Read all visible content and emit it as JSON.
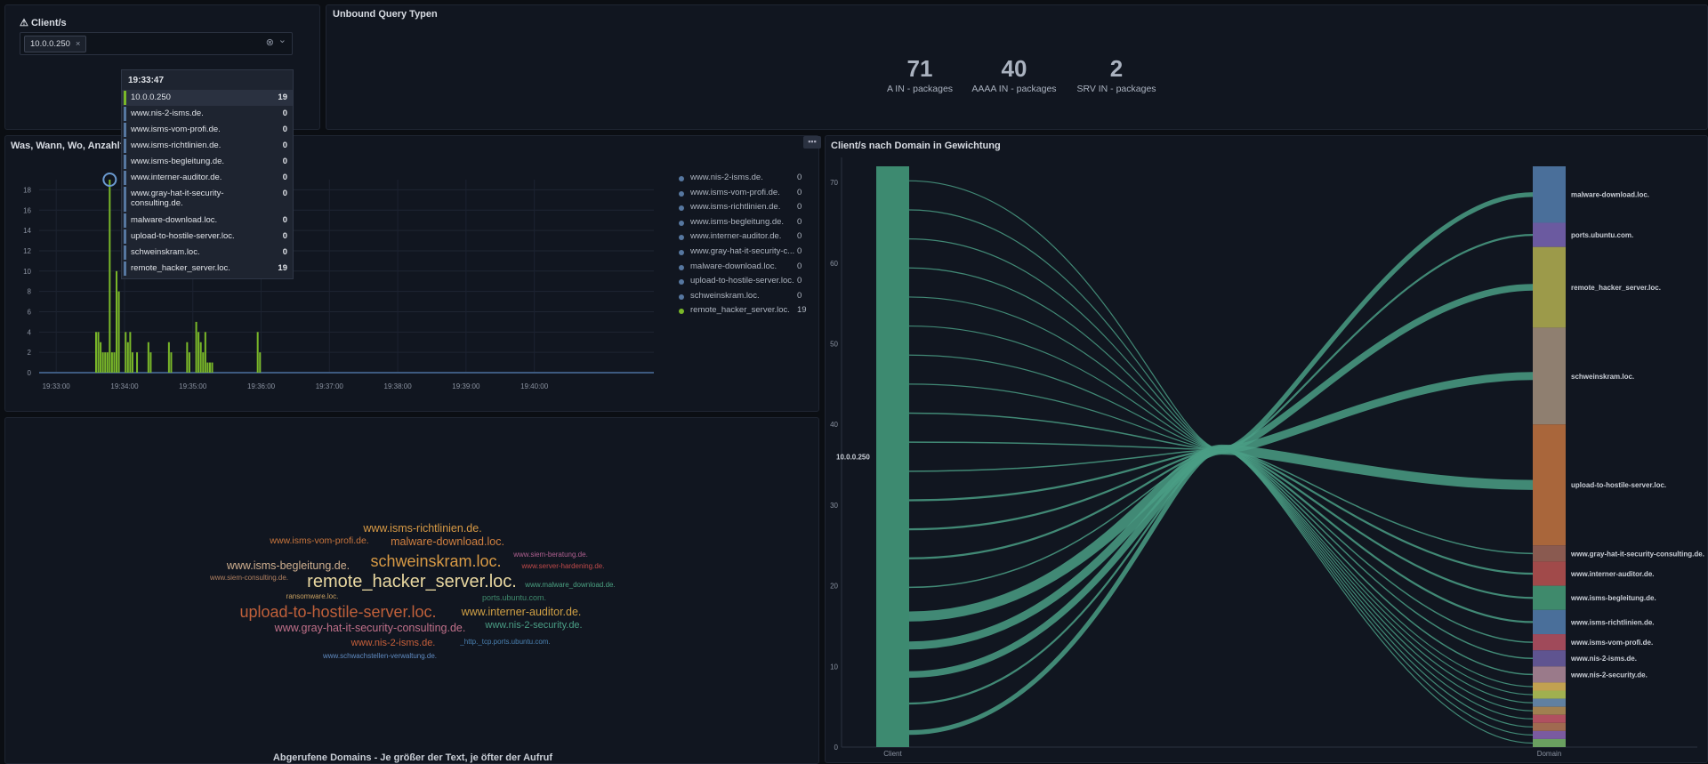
{
  "client_panel": {
    "title": "Client/s",
    "chip": "10.0.0.250",
    "chip_close": "×",
    "clear_icon": "⊗",
    "chevron": "⌄"
  },
  "query_panel": {
    "title": "Unbound Query Typen",
    "stats": [
      {
        "value": "71",
        "label": "A IN - packages"
      },
      {
        "value": "40",
        "label": "AAAA IN - packages"
      },
      {
        "value": "2",
        "label": "SRV IN - packages"
      }
    ]
  },
  "timeline_panel": {
    "title": "Was, Wann, Wo, Anzahl?",
    "tooltip": {
      "time": "19:33:47",
      "rows": [
        {
          "name": "10.0.0.250",
          "count": "19"
        },
        {
          "name": "www.nis-2-isms.de.",
          "count": "0"
        },
        {
          "name": "www.isms-vom-profi.de.",
          "count": "0"
        },
        {
          "name": "www.isms-richtlinien.de.",
          "count": "0"
        },
        {
          "name": "www.isms-begleitung.de.",
          "count": "0"
        },
        {
          "name": "www.interner-auditor.de.",
          "count": "0"
        },
        {
          "name": "www.gray-hat-it-security-",
          "name2": "consulting.de.",
          "count": "0"
        },
        {
          "name": "malware-download.loc.",
          "count": "0"
        },
        {
          "name": "upload-to-hostile-server.loc.",
          "count": "0"
        },
        {
          "name": "schweinskram.loc.",
          "count": "0"
        },
        {
          "name": "remote_hacker_server.loc.",
          "count": "19"
        }
      ]
    },
    "legend": [
      {
        "name": "www.nis-2-isms.de.",
        "count": "0"
      },
      {
        "name": "www.isms-vom-profi.de.",
        "count": "0"
      },
      {
        "name": "www.isms-richtlinien.de.",
        "count": "0"
      },
      {
        "name": "www.isms-begleitung.de.",
        "count": "0"
      },
      {
        "name": "www.interner-auditor.de.",
        "count": "0"
      },
      {
        "name": "www.gray-hat-it-security-c...",
        "count": "0"
      },
      {
        "name": "malware-download.loc.",
        "count": "0"
      },
      {
        "name": "upload-to-hostile-server.loc.",
        "count": "0"
      },
      {
        "name": "schweinskram.loc.",
        "count": "0"
      },
      {
        "name": "remote_hacker_server.loc.",
        "count": "19"
      }
    ]
  },
  "chart_data": [
    {
      "type": "bar",
      "title": "Was, Wann, Wo, Anzahl?",
      "ylim": [
        0,
        19
      ],
      "y_ticks": [
        "0",
        "2",
        "4",
        "6",
        "8",
        "10",
        "12",
        "14",
        "16",
        "18"
      ],
      "x_ticks": [
        "19:33:00",
        "19:34:00",
        "19:35:00",
        "19:36:00",
        "19:37:00",
        "19:38:00",
        "19:39:00",
        "19:40:00"
      ],
      "bar_color": "#7ab829",
      "series": [
        {
          "x": "19:33:35",
          "values": [
            4
          ]
        },
        {
          "x": "19:33:37",
          "values": [
            4
          ]
        },
        {
          "x": "19:33:39",
          "values": [
            3
          ]
        },
        {
          "x": "19:33:41",
          "values": [
            2
          ]
        },
        {
          "x": "19:33:43",
          "values": [
            2
          ]
        },
        {
          "x": "19:33:45",
          "values": [
            2
          ]
        },
        {
          "x": "19:33:47",
          "values": [
            19
          ]
        },
        {
          "x": "19:33:49",
          "values": [
            2
          ]
        },
        {
          "x": "19:33:51",
          "values": [
            2
          ]
        },
        {
          "x": "19:33:53",
          "values": [
            10
          ]
        },
        {
          "x": "19:33:55",
          "values": [
            8
          ]
        },
        {
          "x": "19:34:01",
          "values": [
            4
          ]
        },
        {
          "x": "19:34:03",
          "values": [
            3
          ]
        },
        {
          "x": "19:34:05",
          "values": [
            4
          ]
        },
        {
          "x": "19:34:07",
          "values": [
            2
          ]
        },
        {
          "x": "19:34:11",
          "values": [
            2
          ]
        },
        {
          "x": "19:34:21",
          "values": [
            3
          ]
        },
        {
          "x": "19:34:23",
          "values": [
            2
          ]
        },
        {
          "x": "19:34:39",
          "values": [
            3
          ]
        },
        {
          "x": "19:34:41",
          "values": [
            2
          ]
        },
        {
          "x": "19:34:55",
          "values": [
            3
          ]
        },
        {
          "x": "19:34:57",
          "values": [
            2
          ]
        },
        {
          "x": "19:35:03",
          "values": [
            5
          ]
        },
        {
          "x": "19:35:05",
          "values": [
            4
          ]
        },
        {
          "x": "19:35:07",
          "values": [
            3
          ]
        },
        {
          "x": "19:35:09",
          "values": [
            2
          ]
        },
        {
          "x": "19:35:11",
          "values": [
            4
          ]
        },
        {
          "x": "19:35:13",
          "values": [
            1
          ]
        },
        {
          "x": "19:35:15",
          "values": [
            1
          ]
        },
        {
          "x": "19:35:17",
          "values": [
            1
          ]
        },
        {
          "x": "19:35:57",
          "values": [
            4
          ]
        },
        {
          "x": "19:35:59",
          "values": [
            2
          ]
        }
      ]
    },
    {
      "type": "sankey",
      "title": "Client/s nach Domain in Gewichtung",
      "y_ticks": [
        "0",
        "10",
        "20",
        "30",
        "40",
        "50",
        "60",
        "70"
      ],
      "x_labels": [
        "Client",
        "Domain"
      ],
      "source": "10.0.0.250",
      "link_color": "#4a9e85",
      "targets": [
        {
          "name": "malware-download.loc.",
          "value": 7,
          "color": "#4a6f9a"
        },
        {
          "name": "ports.ubuntu.com.",
          "value": 3,
          "color": "#6b5aa0"
        },
        {
          "name": "remote_hacker_server.loc.",
          "value": 10,
          "color": "#9c9a4a"
        },
        {
          "name": "schweinskram.loc.",
          "value": 12,
          "color": "#8f7f70"
        },
        {
          "name": "upload-to-hostile-server.loc.",
          "value": 15,
          "color": "#a9663b"
        },
        {
          "name": "www.gray-hat-it-security-consulting.de.",
          "value": 2,
          "color": "#8a5a50"
        },
        {
          "name": "www.interner-auditor.de.",
          "value": 3,
          "color": "#a14a4a"
        },
        {
          "name": "www.isms-begleitung.de.",
          "value": 3,
          "color": "#3f8a6c"
        },
        {
          "name": "www.isms-richtlinien.de.",
          "value": 3,
          "color": "#4a6f9a"
        },
        {
          "name": "www.isms-vom-profi.de.",
          "value": 2,
          "color": "#a04a5a"
        },
        {
          "name": "www.nis-2-isms.de.",
          "value": 2,
          "color": "#5f5490"
        },
        {
          "name": "www.nis-2-security.de.",
          "value": 2,
          "color": "#9a7a8a"
        },
        {
          "name": "",
          "value": 1,
          "color": "#c2a150"
        },
        {
          "name": "",
          "value": 1,
          "color": "#a0b050"
        },
        {
          "name": "",
          "value": 1,
          "color": "#6080a0"
        },
        {
          "name": "",
          "value": 1,
          "color": "#a08050"
        },
        {
          "name": "",
          "value": 1,
          "color": "#b05060"
        },
        {
          "name": "",
          "value": 1,
          "color": "#a06a50"
        },
        {
          "name": "",
          "value": 1,
          "color": "#7a5aa0"
        },
        {
          "name": "",
          "value": 1,
          "color": "#6aa060"
        }
      ]
    }
  ],
  "wordcloud_panel": {
    "caption": "Abgerufene Domains - Je größer der Text, je öfter der Aufruf",
    "words": [
      {
        "text": "www.isms-richtlinien.de.",
        "size": 12.5,
        "color": "#d89a45",
        "cx": 475,
        "cy": 594
      },
      {
        "text": "www.isms-vom-profi.de.",
        "size": 10.5,
        "color": "#c8753c",
        "cx": 359,
        "cy": 608
      },
      {
        "text": "malware-download.loc.",
        "size": 12.5,
        "color": "#d08040",
        "cx": 503,
        "cy": 609
      },
      {
        "text": "www.siem-beratung.de.",
        "size": 8,
        "color": "#b06090",
        "cx": 619,
        "cy": 624
      },
      {
        "text": "www.isms-begleitung.de.",
        "size": 12.5,
        "color": "#d0b090",
        "cx": 324,
        "cy": 636
      },
      {
        "text": "schweinskram.loc.",
        "size": 18,
        "color": "#d89a45",
        "cx": 490,
        "cy": 632
      },
      {
        "text": "www.server-hardening.de.",
        "size": 8,
        "color": "#c04a4a",
        "cx": 633,
        "cy": 637
      },
      {
        "text": "www.siem-consulting.de.",
        "size": 8,
        "color": "#b08060",
        "cx": 280,
        "cy": 650
      },
      {
        "text": "remote_hacker_server.loc.",
        "size": 20,
        "color": "#e8d7a0",
        "cx": 463,
        "cy": 655
      },
      {
        "text": "www.malware_download.de.",
        "size": 8,
        "color": "#4aa080",
        "cx": 641,
        "cy": 658
      },
      {
        "text": "ransomware.loc.",
        "size": 8,
        "color": "#c8a060",
        "cx": 351,
        "cy": 671
      },
      {
        "text": "ports.ubuntu.com.",
        "size": 9,
        "color": "#3f8a6c",
        "cx": 578,
        "cy": 672
      },
      {
        "text": "upload-to-hostile-server.loc.",
        "size": 18,
        "color": "#c0603a",
        "cx": 380,
        "cy": 689
      },
      {
        "text": "www.interner-auditor.de.",
        "size": 12.5,
        "color": "#d0a045",
        "cx": 586,
        "cy": 688
      },
      {
        "text": "www.gray-hat-it-security-consulting.de.",
        "size": 12.5,
        "color": "#c0708a",
        "cx": 416,
        "cy": 706
      },
      {
        "text": "www.nis-2-security.de.",
        "size": 11,
        "color": "#4a9e85",
        "cx": 600,
        "cy": 704
      },
      {
        "text": "www.nis-2-isms.de.",
        "size": 11,
        "color": "#c8603a",
        "cx": 442,
        "cy": 724
      },
      {
        "text": "_http._tcp.ports.ubuntu.com.",
        "size": 8,
        "color": "#4a80b0",
        "cx": 568,
        "cy": 722
      },
      {
        "text": "www.schwachstellen-verwaltung.de.",
        "size": 8,
        "color": "#5f8ac0",
        "cx": 427,
        "cy": 738
      }
    ]
  }
}
